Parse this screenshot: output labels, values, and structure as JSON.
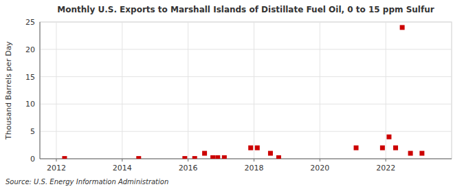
{
  "chart_data": {
    "type": "scatter",
    "title": "Monthly U.S. Exports to Marshall Islands of Distillate Fuel Oil, 0 to 15 ppm Sulfur",
    "ylabel": "Thousand Barrels per Day",
    "source": "Source: U.S. Energy Information Administration",
    "x": [
      2012.25,
      2014.5,
      2015.9,
      2016.2,
      2016.5,
      2016.75,
      2016.9,
      2017.1,
      2017.9,
      2018.1,
      2018.5,
      2018.75,
      2021.1,
      2021.9,
      2022.1,
      2022.3,
      2022.5,
      2022.75,
      2023.1
    ],
    "values": [
      0.05,
      0.05,
      0.05,
      0.05,
      1.0,
      0.2,
      0.2,
      0.2,
      2.0,
      2.0,
      1.0,
      0.2,
      2.0,
      2.0,
      4.0,
      2.0,
      24.0,
      1.0,
      1.0
    ],
    "color": "#cc0000",
    "marker": "square",
    "xlim": [
      2011.5,
      2024.0
    ],
    "ylim": [
      0,
      25
    ],
    "xticks": [
      2012,
      2014,
      2016,
      2018,
      2020,
      2022
    ],
    "yticks": [
      0,
      5,
      10,
      15,
      20,
      25
    ],
    "grid": true
  }
}
